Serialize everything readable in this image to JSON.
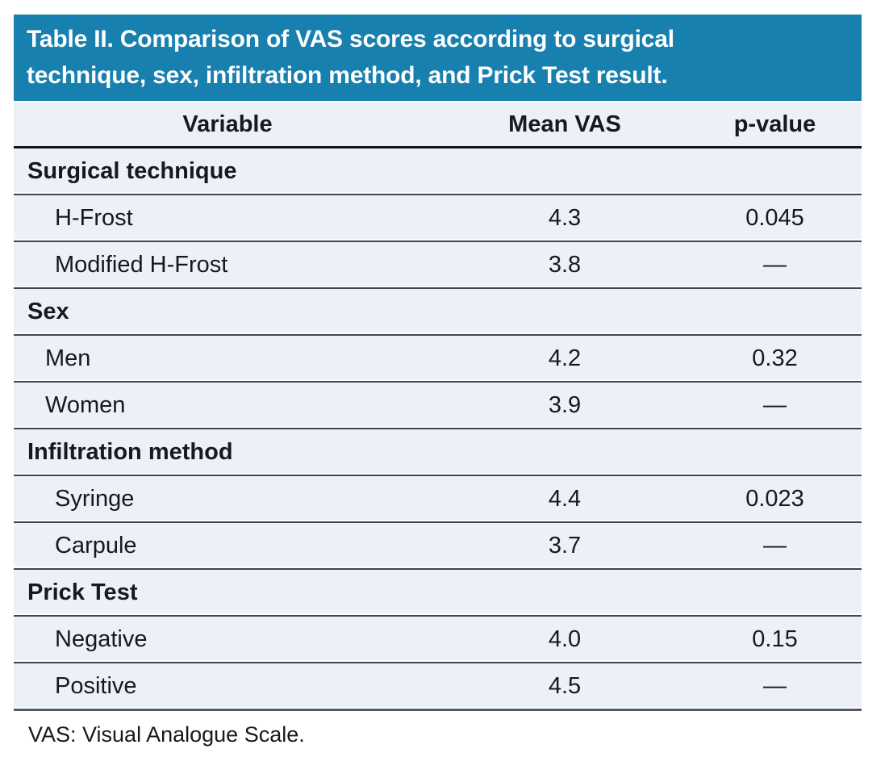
{
  "colors": {
    "accent": "#1780ae",
    "row_bg": "#ecf0f8",
    "divider": "#43474e",
    "heavy_line": "#14161a",
    "title_text": "#ffffff",
    "body_text": "#17191d"
  },
  "table": {
    "title": "Table II. Comparison of VAS scores according to surgical\ntechnique, sex, infiltration method, and Prick Test result.",
    "columns": [
      "Variable",
      "Mean VAS",
      "p-value"
    ],
    "rows": [
      {
        "type": "section",
        "label": "Surgical technique"
      },
      {
        "type": "item",
        "label": "H-Frost",
        "mean_vas": "4.3",
        "p_value": "0.045"
      },
      {
        "type": "item",
        "label": "Modified H-Frost",
        "mean_vas": "3.8",
        "p_value": "—"
      },
      {
        "type": "section",
        "label": "Sex"
      },
      {
        "type": "item",
        "label": "Men",
        "mean_vas": "4.2",
        "p_value": "0.32",
        "indent": "small"
      },
      {
        "type": "item",
        "label": "Women",
        "mean_vas": "3.9",
        "p_value": "—",
        "indent": "small"
      },
      {
        "type": "section",
        "label": "Infiltration method"
      },
      {
        "type": "item",
        "label": "Syringe",
        "mean_vas": "4.4",
        "p_value": "0.023"
      },
      {
        "type": "item",
        "label": "Carpule",
        "mean_vas": "3.7",
        "p_value": "—"
      },
      {
        "type": "section",
        "label": "Prick Test"
      },
      {
        "type": "item",
        "label": "Negative",
        "mean_vas": "4.0",
        "p_value": "0.15"
      },
      {
        "type": "item",
        "label": "Positive",
        "mean_vas": "4.5",
        "p_value": "—"
      }
    ],
    "footnote": "VAS: Visual Analogue Scale."
  }
}
